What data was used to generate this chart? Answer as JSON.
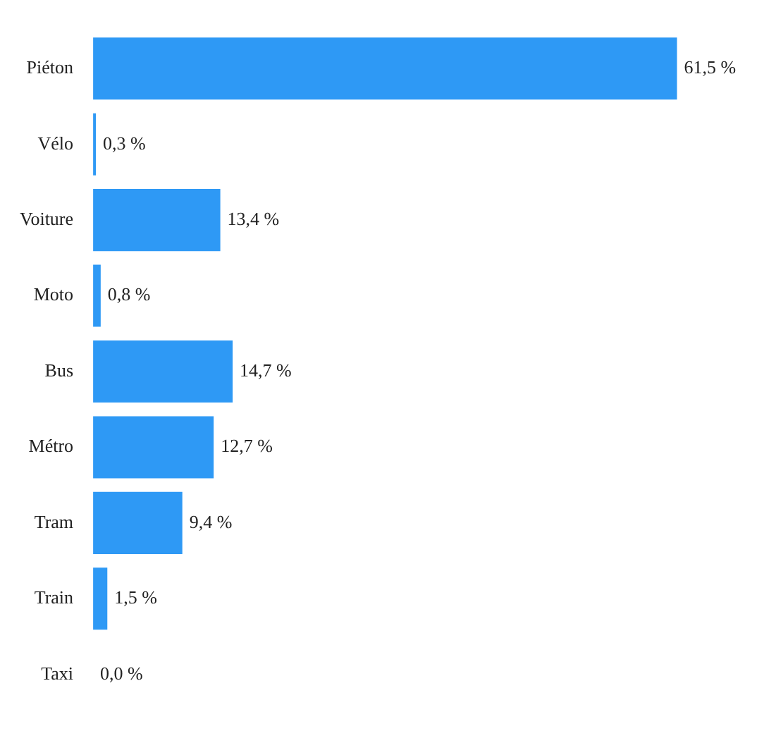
{
  "chart_data": {
    "type": "bar",
    "orientation": "horizontal",
    "categories": [
      "Piéton",
      "Vélo",
      "Voiture",
      "Moto",
      "Bus",
      "Métro",
      "Tram",
      "Train",
      "Taxi"
    ],
    "values": [
      61.5,
      0.3,
      13.4,
      0.8,
      14.7,
      12.7,
      9.4,
      1.5,
      0.0
    ],
    "value_labels": [
      "61,5 %",
      "0,3 %",
      "13,4 %",
      "0,8 %",
      "14,7 %",
      "12,7 %",
      "9,4 %",
      "1,5 %",
      "0,0 %"
    ],
    "color": "#2e99f5",
    "legend": false
  }
}
